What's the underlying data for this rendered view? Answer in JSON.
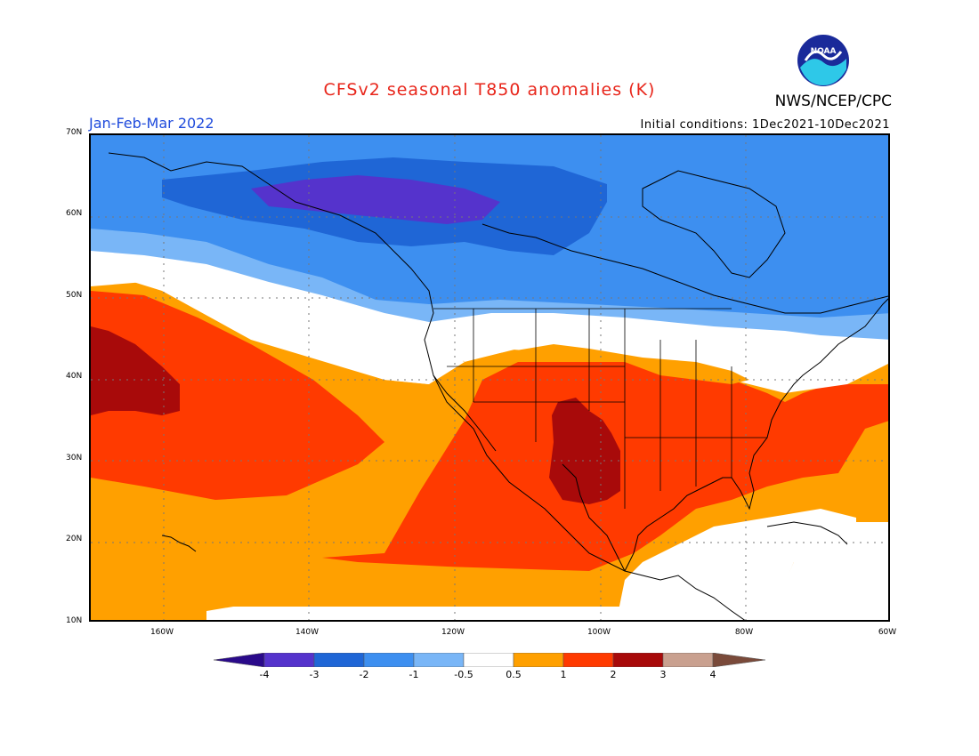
{
  "header": {
    "title": "CFSv2 seasonal T850 anomalies (K)",
    "organization": "NWS/NCEP/CPC",
    "season": "Jan-Feb-Mar 2022",
    "initial_conditions": "Initial conditions: 1Dec2021-10Dec2021",
    "logo_text": "NOAA"
  },
  "map": {
    "lat_labels": [
      "70N",
      "60N",
      "50N",
      "40N",
      "30N",
      "20N",
      "10N"
    ],
    "lon_labels": [
      "160W",
      "140W",
      "120W",
      "100W",
      "80W",
      "60W"
    ]
  },
  "legend": {
    "labels": [
      "-4",
      "-3",
      "-2",
      "-1",
      "-0.5",
      "0.5",
      "1",
      "2",
      "3",
      "4"
    ],
    "colors": {
      "lt_neg4": "#2a0a8a",
      "neg4_neg3": "#5533cc",
      "neg3_neg2": "#1f66d6",
      "neg2_neg1": "#3d8ff0",
      "neg1_neg05": "#79b6f7",
      "neutral": "#ffffff",
      "p05_1": "#ffa000",
      "p1_2": "#ff3a00",
      "p2_3": "#a80a0a",
      "p3_4": "#c9a08f",
      "gt4": "#7a4a3a"
    }
  }
}
